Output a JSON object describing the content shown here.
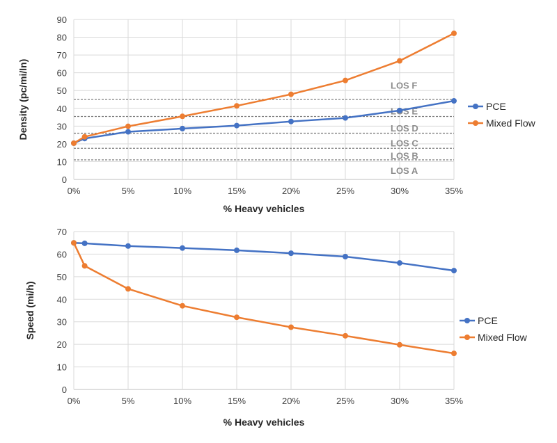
{
  "chart_data": [
    {
      "type": "line",
      "xlabel": "% Heavy vehicles",
      "ylabel": "Density  (pc/mi/ln)",
      "x": [
        0,
        1,
        5,
        10,
        15,
        20,
        25,
        30,
        35
      ],
      "xticks": [
        0,
        5,
        10,
        15,
        20,
        25,
        30,
        35
      ],
      "xtick_labels": [
        "0%",
        "5%",
        "10%",
        "15%",
        "20%",
        "25%",
        "30%",
        "35%"
      ],
      "xlim": [
        0,
        35
      ],
      "ylim": [
        0,
        90
      ],
      "yticks": [
        0,
        10,
        20,
        30,
        40,
        50,
        60,
        70,
        80,
        90
      ],
      "grid": true,
      "legend": "right",
      "series": [
        {
          "name": "PCE",
          "color": "#4472C4",
          "values": [
            20.4,
            23,
            26.8,
            28.6,
            30.3,
            32.6,
            34.6,
            38.8,
            44.2
          ]
        },
        {
          "name": "Mixed Flow",
          "color": "#ED7D31",
          "values": [
            20.4,
            24,
            29.9,
            35.5,
            41.4,
            47.9,
            55.7,
            66.7,
            82.2
          ]
        }
      ],
      "thresholds": [
        {
          "value": 11,
          "color": "#7f7f7f"
        },
        {
          "value": 17.5,
          "color": "#7f7f7f"
        },
        {
          "value": 26,
          "color": "#7f7f7f"
        },
        {
          "value": 35.4,
          "color": "#7f7f7f"
        },
        {
          "value": 45,
          "color": "#7f7f7f"
        }
      ],
      "annotations": [
        {
          "text": "LOS A",
          "y": 5
        },
        {
          "text": "LOS B",
          "y": 13.5
        },
        {
          "text": "LOS C",
          "y": 20.5
        },
        {
          "text": "LOS D",
          "y": 29
        },
        {
          "text": "LOS E",
          "y": 38.5
        },
        {
          "text": "LOS F",
          "y": 53
        }
      ]
    },
    {
      "type": "line",
      "xlabel": "% Heavy vehicles",
      "ylabel": "Speed  (mi/h)",
      "x": [
        0,
        1,
        5,
        10,
        15,
        20,
        25,
        30,
        35
      ],
      "xticks": [
        0,
        5,
        10,
        15,
        20,
        25,
        30,
        35
      ],
      "xtick_labels": [
        "0%",
        "5%",
        "10%",
        "15%",
        "20%",
        "25%",
        "30%",
        "35%"
      ],
      "xlim": [
        0,
        35
      ],
      "ylim": [
        0,
        70
      ],
      "yticks": [
        0,
        10,
        20,
        30,
        40,
        50,
        60,
        70
      ],
      "grid": true,
      "legend": "right",
      "series": [
        {
          "name": "PCE",
          "color": "#4472C4",
          "values": [
            65,
            64.8,
            63.6,
            62.7,
            61.7,
            60.4,
            58.9,
            56.1,
            52.7
          ]
        },
        {
          "name": "Mixed Flow",
          "color": "#ED7D31",
          "values": [
            65,
            54.8,
            44.6,
            37.1,
            32,
            27.6,
            23.8,
            19.8,
            16
          ]
        }
      ]
    }
  ]
}
